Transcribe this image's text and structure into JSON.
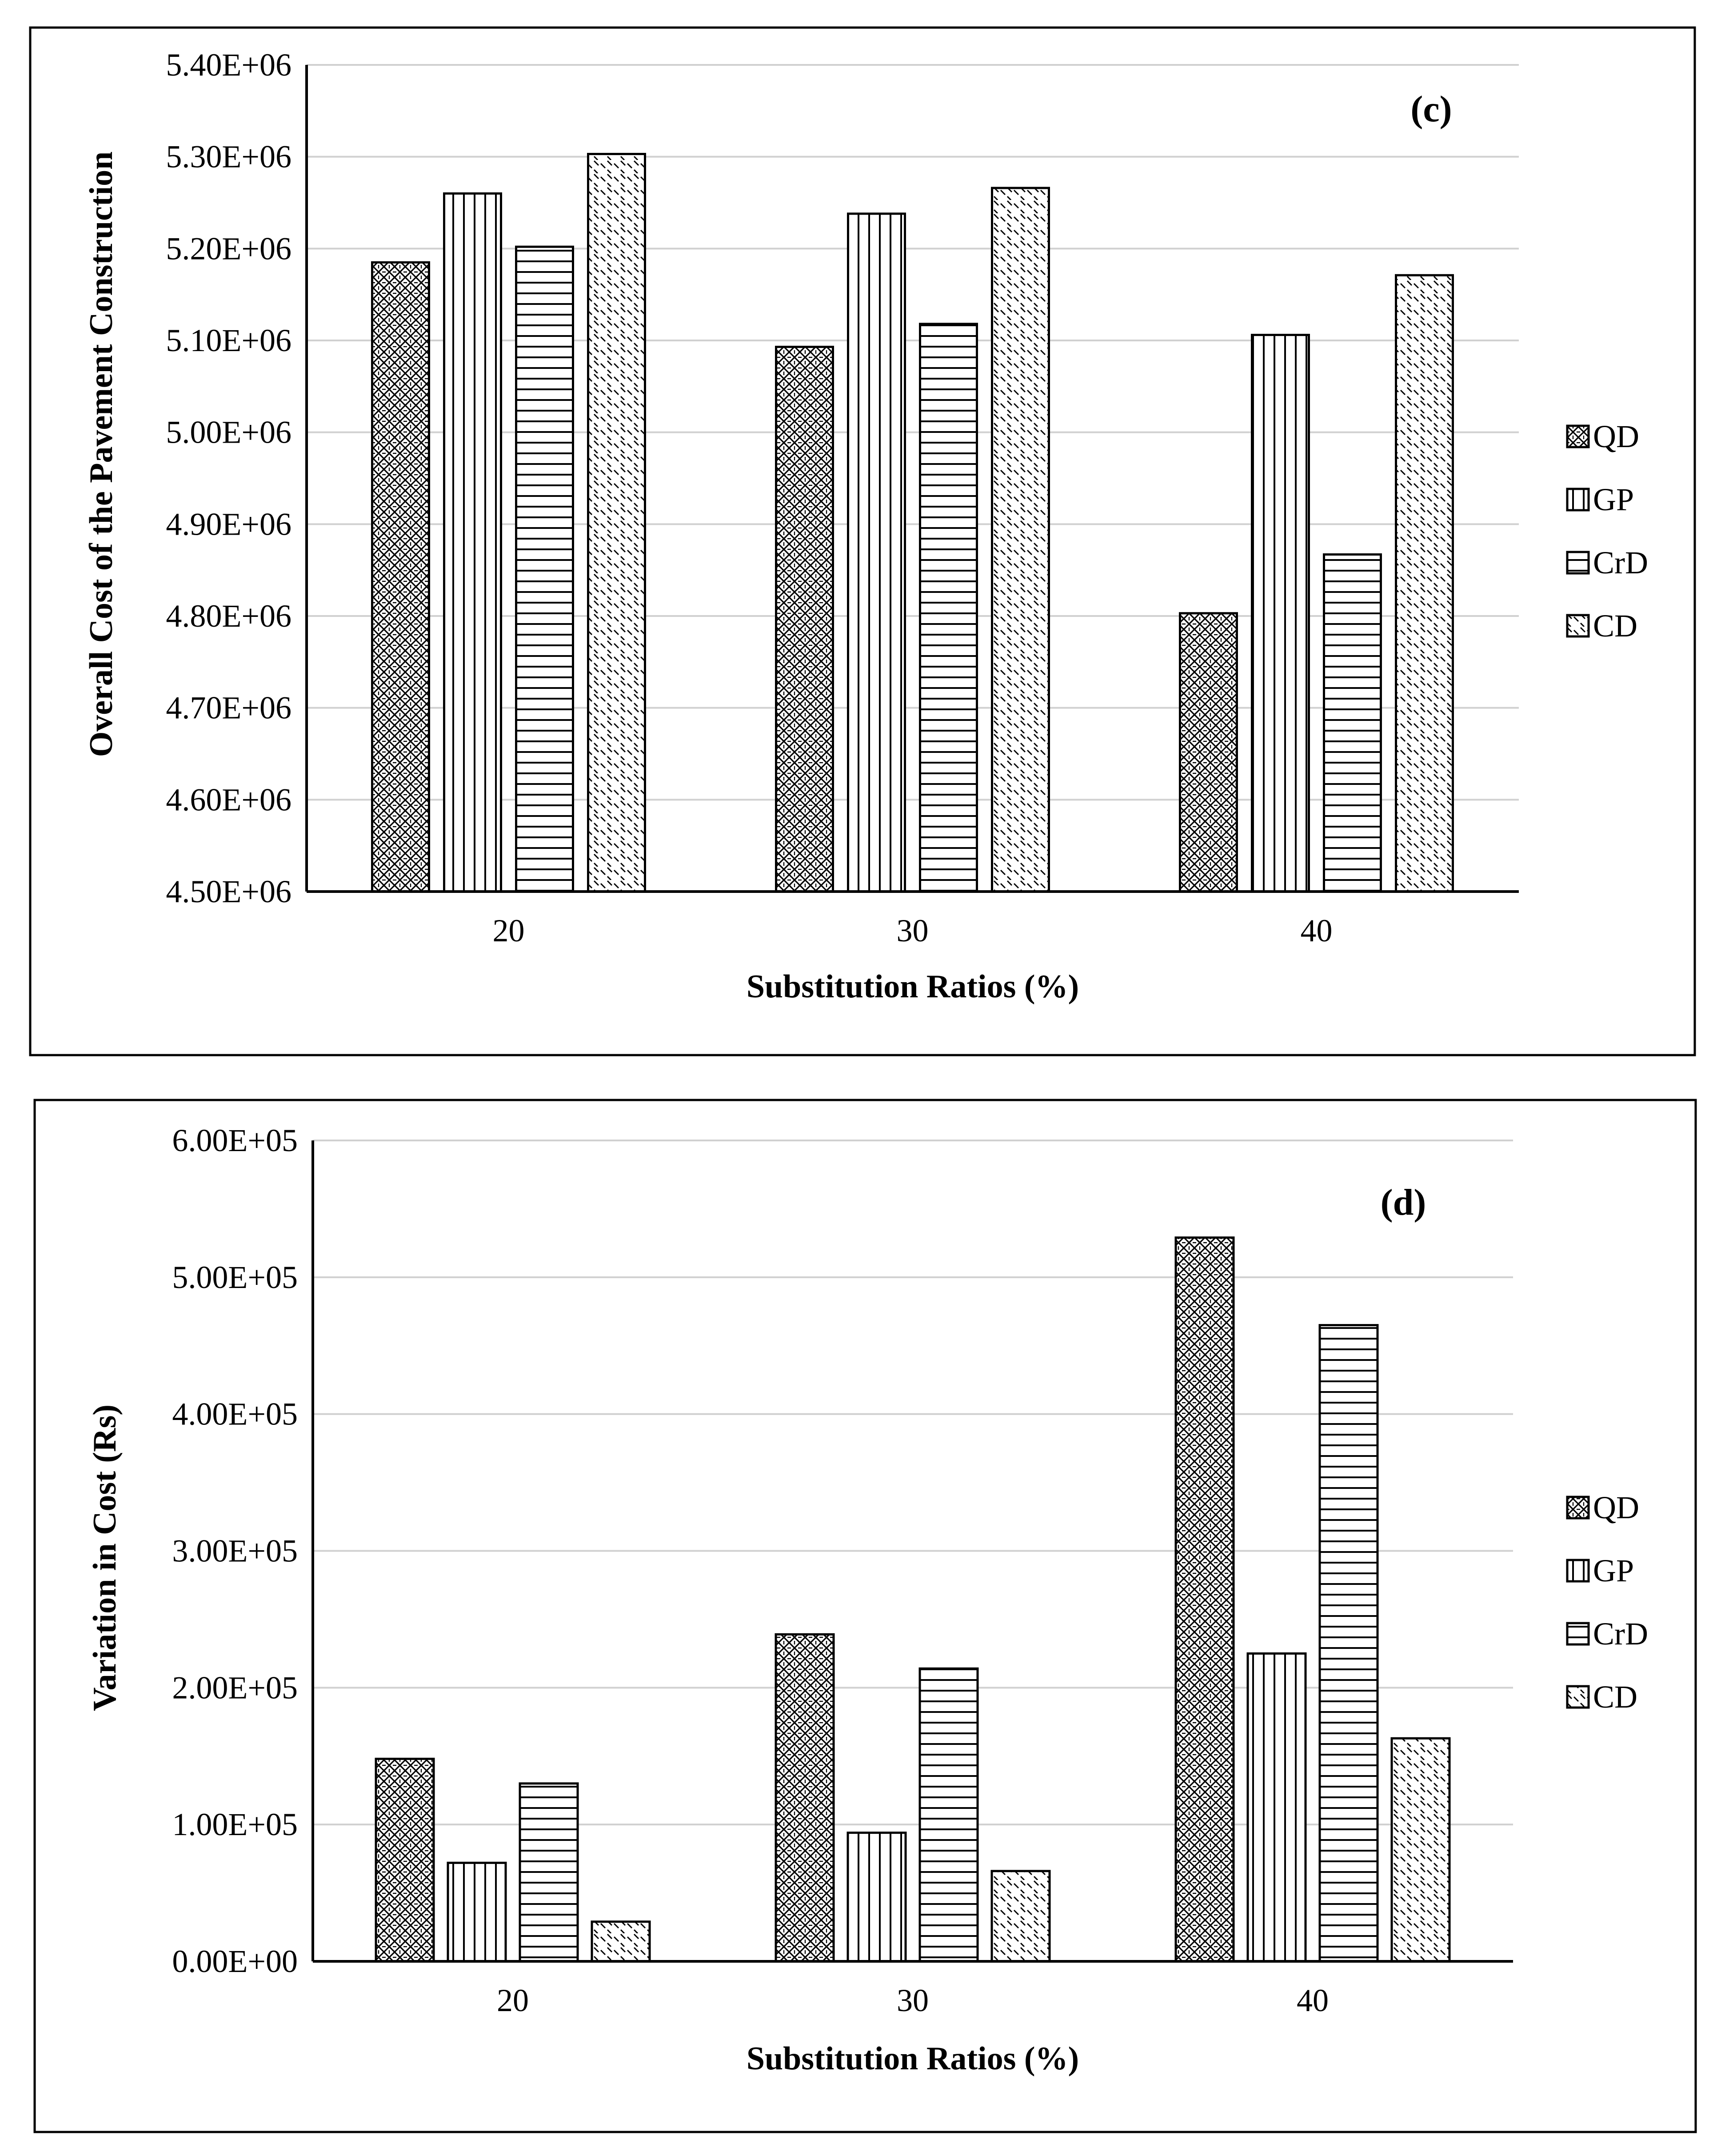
{
  "chart_data": [
    {
      "type": "bar",
      "panel_label": "(c)",
      "categories": [
        "20",
        "30",
        "40"
      ],
      "series": [
        {
          "name": "QD",
          "values": [
            5185000,
            5093000,
            4803000
          ]
        },
        {
          "name": "GP",
          "values": [
            5260000,
            5238000,
            5106000
          ]
        },
        {
          "name": "CrD",
          "values": [
            5202000,
            5118000,
            4867000
          ]
        },
        {
          "name": "CD",
          "values": [
            5303000,
            5266000,
            5171000
          ]
        }
      ],
      "xlabel": "Substitution Ratios (%)",
      "ylabel": "Overall Cost of the Pavement Construction",
      "ylim": [
        4500000,
        5400000
      ],
      "yticks": [
        4500000,
        4600000,
        4700000,
        4800000,
        4900000,
        5000000,
        5100000,
        5200000,
        5300000,
        5400000
      ],
      "ytick_labels": [
        "4.50E+06",
        "4.60E+06",
        "4.70E+06",
        "4.80E+06",
        "4.90E+06",
        "5.00E+06",
        "5.10E+06",
        "5.20E+06",
        "5.30E+06",
        "5.40E+06"
      ],
      "grid": true,
      "legend": "right"
    },
    {
      "type": "bar",
      "panel_label": "(d)",
      "categories": [
        "20",
        "30",
        "40"
      ],
      "series": [
        {
          "name": "QD",
          "values": [
            148000,
            239000,
            529000
          ]
        },
        {
          "name": "GP",
          "values": [
            72000,
            94000,
            225000
          ]
        },
        {
          "name": "CrD",
          "values": [
            130000,
            214000,
            465000
          ]
        },
        {
          "name": "CD",
          "values": [
            29000,
            66000,
            163000
          ]
        }
      ],
      "xlabel": "Substitution Ratios (%)",
      "ylabel": "Variation in Cost (Rs)",
      "ylim": [
        0,
        600000
      ],
      "yticks": [
        0,
        100000,
        200000,
        300000,
        400000,
        500000,
        600000
      ],
      "ytick_labels": [
        "0.00E+00",
        "1.00E+05",
        "2.00E+05",
        "3.00E+05",
        "4.00E+05",
        "5.00E+05",
        "6.00E+05"
      ],
      "grid": true,
      "legend": "right"
    }
  ]
}
